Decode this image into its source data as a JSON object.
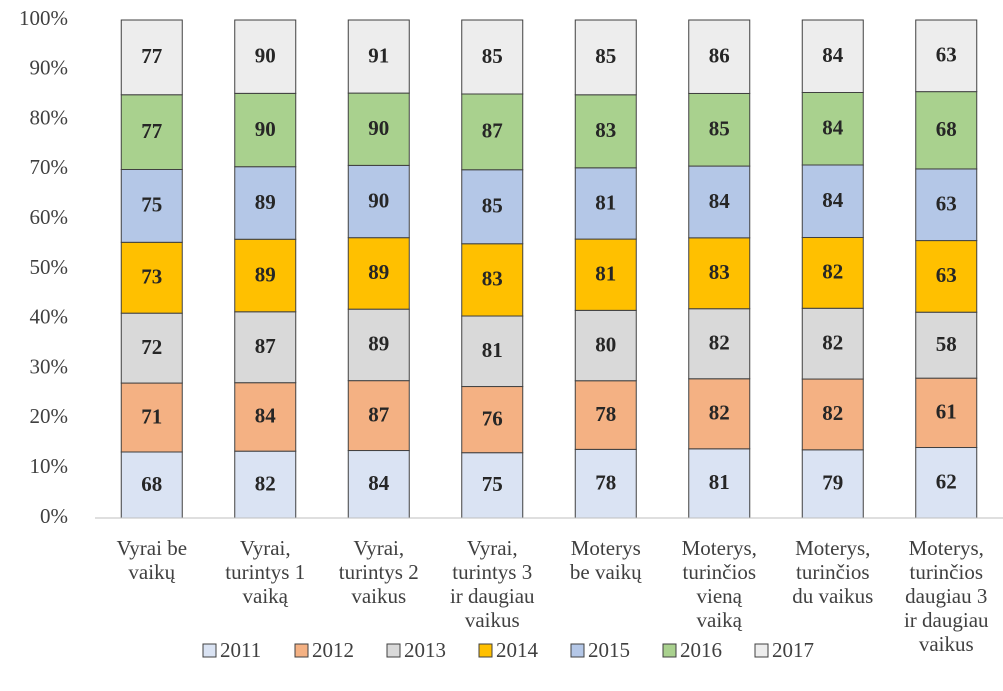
{
  "chart_data": {
    "type": "bar",
    "stacked_percent": true,
    "categories": [
      "Vyrai be\nvaikų",
      "Vyrai,\nturintys 1\nvaiką",
      "Vyrai,\nturintys 2\nvaikus",
      "Vyrai,\nturintys 3\nir daugiau\nvaikus",
      "Moterys\nbe vaikų",
      "Moterys,\nturinčios\nvieną\nvaiką",
      "Moterys,\nturinčios\ndu vaikus",
      "Moterys,\nturinčios\ndaugiau 3\nir daugiau\nvaikus"
    ],
    "series": [
      {
        "name": "2011",
        "color": "#dae3f3",
        "values": [
          68,
          82,
          84,
          75,
          78,
          81,
          79,
          62
        ]
      },
      {
        "name": "2012",
        "color": "#f4b183",
        "values": [
          71,
          84,
          87,
          76,
          78,
          82,
          82,
          61
        ]
      },
      {
        "name": "2013",
        "color": "#d9d9d9",
        "values": [
          72,
          87,
          89,
          81,
          80,
          82,
          82,
          58
        ]
      },
      {
        "name": "2014",
        "color": "#ffc000",
        "values": [
          73,
          89,
          89,
          83,
          81,
          83,
          82,
          63
        ]
      },
      {
        "name": "2015",
        "color": "#b4c7e7",
        "values": [
          75,
          89,
          90,
          85,
          81,
          84,
          84,
          63
        ]
      },
      {
        "name": "2016",
        "color": "#a9d18e",
        "values": [
          77,
          90,
          90,
          87,
          83,
          85,
          84,
          68
        ]
      },
      {
        "name": "2017",
        "color": "#ededed",
        "values": [
          77,
          90,
          91,
          85,
          85,
          86,
          84,
          63
        ]
      }
    ],
    "ylim": [
      0,
      100
    ],
    "yticks": [
      {
        "value": 0,
        "label": "0%"
      },
      {
        "value": 10,
        "label": "10%"
      },
      {
        "value": 20,
        "label": "20%"
      },
      {
        "value": 30,
        "label": "30%"
      },
      {
        "value": 40,
        "label": "40%"
      },
      {
        "value": 50,
        "label": "50%"
      },
      {
        "value": 60,
        "label": "60%"
      },
      {
        "value": 70,
        "label": "70%"
      },
      {
        "value": 80,
        "label": "80%"
      },
      {
        "value": 90,
        "label": "90%"
      },
      {
        "value": 100,
        "label": "100%"
      }
    ],
    "grid": false,
    "legend": "bottom"
  }
}
